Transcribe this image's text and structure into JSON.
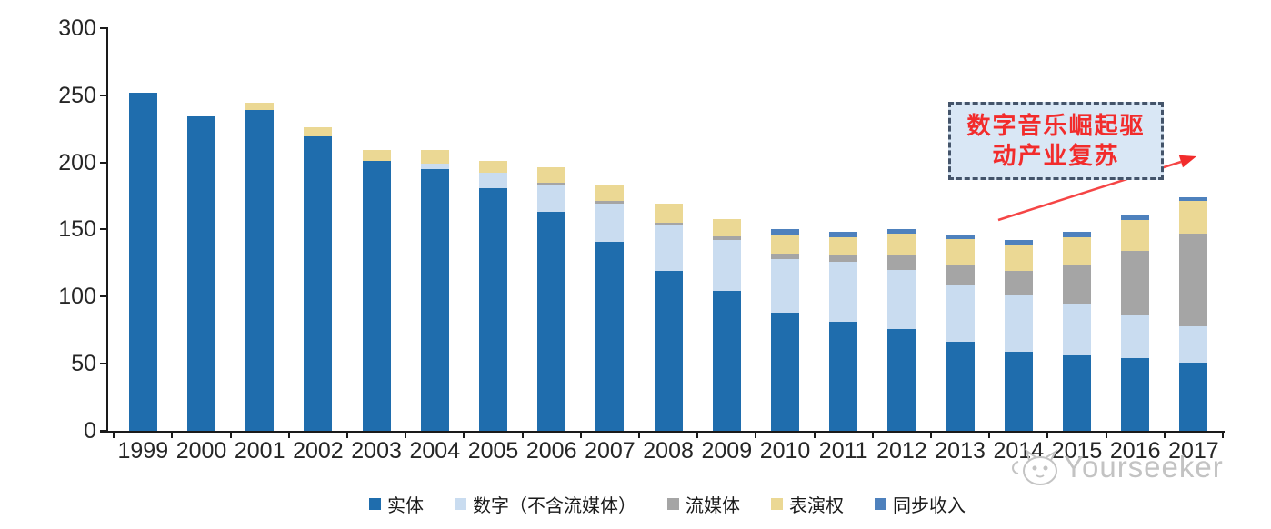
{
  "chart_data": {
    "type": "bar",
    "variant": "stacked-vertical",
    "title": "",
    "xlabel": "",
    "ylabel": "",
    "ylim": [
      0,
      300
    ],
    "ytick_step": 50,
    "grid": false,
    "legend_position": "bottom",
    "categories": [
      "1999",
      "2000",
      "2001",
      "2002",
      "2003",
      "2004",
      "2005",
      "2006",
      "2007",
      "2008",
      "2009",
      "2010",
      "2011",
      "2012",
      "2013",
      "2014",
      "2015",
      "2016",
      "2017"
    ],
    "series": [
      {
        "key": "physical",
        "name": "实体",
        "color": "#1F6DAD",
        "values": [
          252,
          234,
          239,
          219,
          201,
          195,
          181,
          163,
          141,
          119,
          104,
          88,
          81,
          76,
          66,
          59,
          56,
          54,
          51
        ]
      },
      {
        "key": "digital",
        "name": "数字（不含流媒体）",
        "color": "#C9DCF0",
        "values": [
          0,
          0,
          0,
          0,
          0,
          4,
          11,
          20,
          28,
          34,
          38,
          40,
          45,
          44,
          42,
          42,
          39,
          32,
          27
        ]
      },
      {
        "key": "streaming",
        "name": "流媒体",
        "color": "#A5A5A5",
        "values": [
          0,
          0,
          0,
          0,
          0,
          0,
          0,
          2,
          2,
          2,
          3,
          4,
          5,
          11,
          16,
          18,
          28,
          48,
          69
        ]
      },
      {
        "key": "performance",
        "name": "表演权",
        "color": "#EBD894",
        "values": [
          0,
          0,
          5,
          7,
          8,
          10,
          9,
          11,
          12,
          14,
          13,
          14,
          13,
          16,
          19,
          19,
          21,
          23,
          24
        ]
      },
      {
        "key": "sync",
        "name": "同步收入",
        "color": "#4E81BD",
        "values": [
          0,
          0,
          0,
          0,
          0,
          0,
          0,
          0,
          0,
          0,
          0,
          4,
          4,
          3,
          3,
          4,
          4,
          4,
          3
        ]
      }
    ]
  },
  "axis": {
    "y_tick_labels": [
      "0",
      "50",
      "100",
      "150",
      "200",
      "250",
      "300"
    ]
  },
  "annotation": {
    "line1": "数字音乐崛起驱",
    "line2": "动产业复苏",
    "full_text": "数字音乐崛起驱动产业复苏",
    "box_fill": "#D9E7F5",
    "border_color": "#44546A",
    "text_color": "#F22C2C",
    "arrow_color": "#F54545"
  },
  "watermark": {
    "text": "Yourseeker",
    "icon": "cat-mascot-icon",
    "color": "#C3C3C3"
  }
}
